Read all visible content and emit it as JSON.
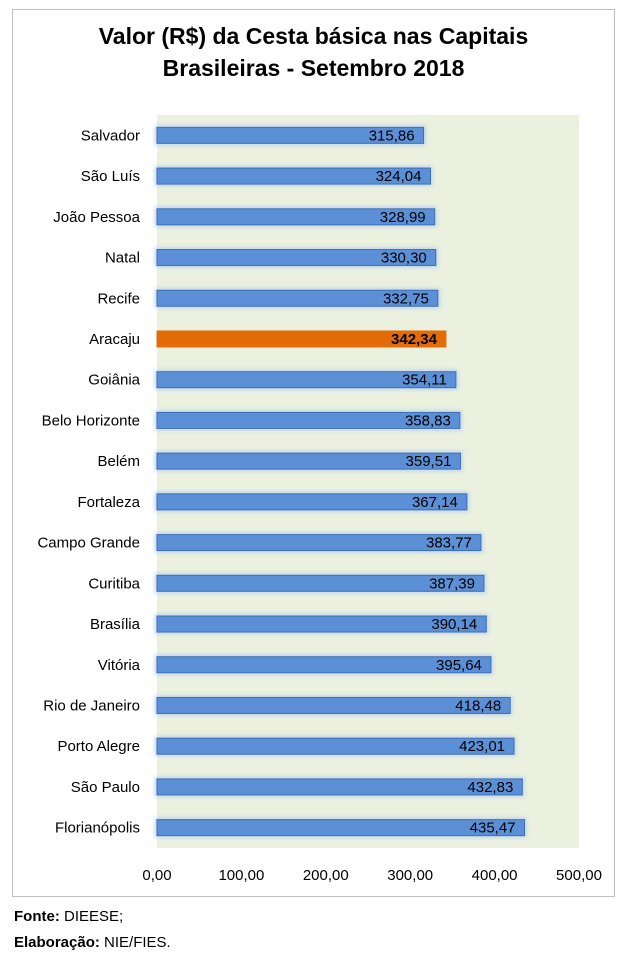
{
  "chart_data": {
    "type": "bar",
    "orientation": "horizontal",
    "title": "Valor (R$) da Cesta básica nas Capitais Brasileiras - Setembro 2018",
    "title_lines": [
      "Valor (R$) da Cesta básica nas Capitais",
      "Brasileiras - Setembro 2018"
    ],
    "categories": [
      "Salvador",
      "São Luís",
      "João Pessoa",
      "Natal",
      "Recife",
      "Aracaju",
      "Goiânia",
      "Belo Horizonte",
      "Belém",
      "Fortaleza",
      "Campo Grande",
      "Curitiba",
      "Brasília",
      "Vitória",
      "Rio de Janeiro",
      "Porto Alegre",
      "São Paulo",
      "Florianópolis"
    ],
    "values": [
      315.86,
      324.04,
      328.99,
      330.3,
      332.75,
      342.34,
      354.11,
      358.83,
      359.51,
      367.14,
      383.77,
      387.39,
      390.14,
      395.64,
      418.48,
      423.01,
      432.83,
      435.47
    ],
    "value_labels": [
      "315,86",
      "324,04",
      "328,99",
      "330,30",
      "332,75",
      "342,34",
      "354,11",
      "358,83",
      "359,51",
      "367,14",
      "383,77",
      "387,39",
      "390,14",
      "395,64",
      "418,48",
      "423,01",
      "432,83",
      "435,47"
    ],
    "highlight": "Aracaju",
    "xlim": [
      0,
      500
    ],
    "xticks": [
      0,
      100,
      200,
      300,
      400,
      500
    ],
    "xtick_labels": [
      "0,00",
      "100,00",
      "200,00",
      "300,00",
      "400,00",
      "500,00"
    ],
    "xlabel": "",
    "ylabel": "",
    "grid": false,
    "legend": "none",
    "colors": {
      "bar": "#5b8fd6",
      "bar_edge": "#3f6fb5",
      "bar_glow": "#bcd3ee",
      "highlight_bar": "#e36c09",
      "plot_bg": "#ebf1de",
      "text": "#000000"
    }
  },
  "footer": {
    "source_label": "Fonte:",
    "source_value": "DIEESE;",
    "prepared_label": "Elaboração:",
    "prepared_value": "NIE/FIES."
  }
}
